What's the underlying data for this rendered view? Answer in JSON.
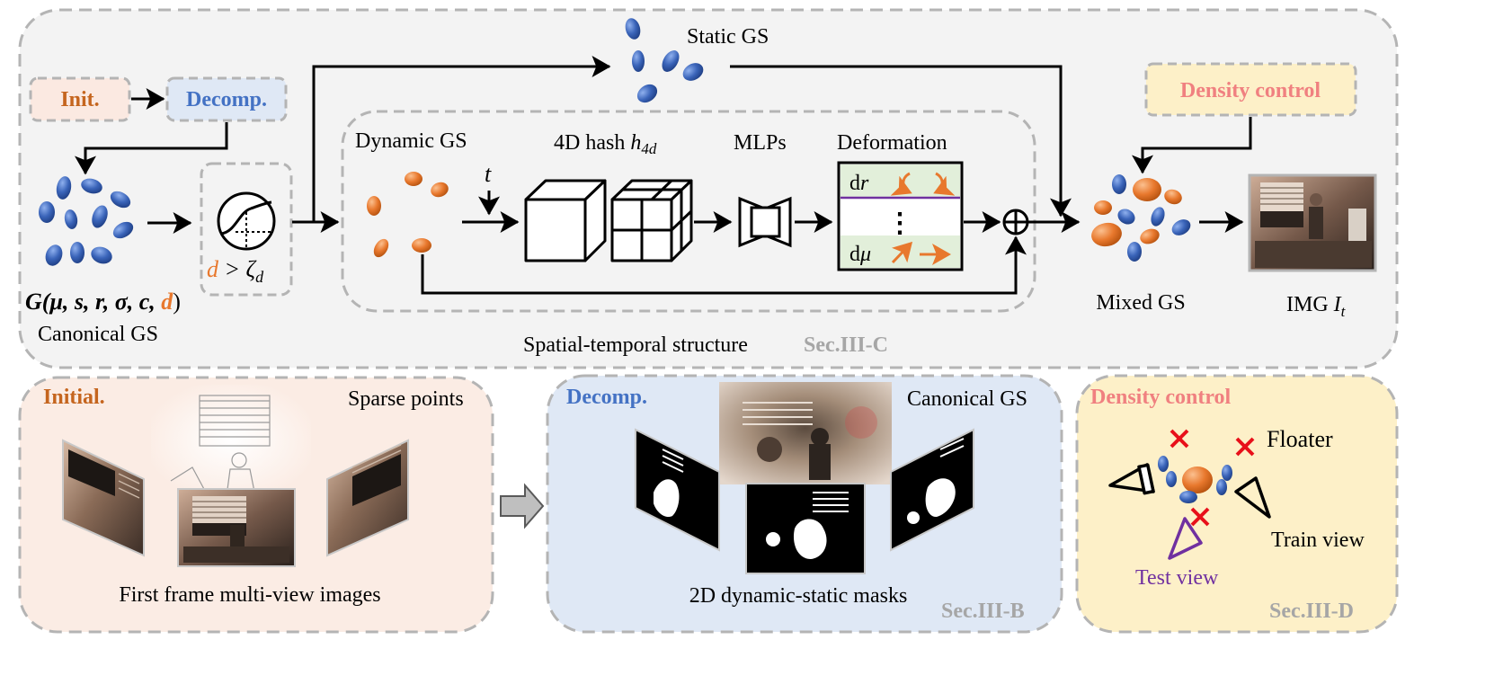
{
  "top": {
    "init_label": "Init.",
    "decomp_label": "Decomp.",
    "density_label": "Density control",
    "static_gs": "Static GS",
    "dynamic_gs": "Dynamic GS",
    "hash_prefix": "4D hash ",
    "hash_symbol": "h",
    "hash_sub": "4d",
    "mlps": "MLPs",
    "deformation": "Deformation",
    "dr_d": "d",
    "dr_var": "r",
    "dmu_d": "d",
    "dmu_var": "μ",
    "vdots": "⋮",
    "t_symbol": "t",
    "threshold_d": "d",
    "threshold_rest": " > ζ",
    "threshold_sub": "d",
    "formula_G": "G(",
    "formula_params": "μ, s, r, σ, c, ",
    "formula_d": "d",
    "formula_close": ")",
    "canonical_gs": "Canonical GS",
    "oplus": "⊕",
    "mixed_gs": "Mixed GS",
    "img_prefix": "IMG ",
    "img_var": "I",
    "img_sub": "t",
    "spatial_temporal": "Spatial-temporal structure",
    "sec_c": "Sec.III-C"
  },
  "panels": {
    "initial": {
      "title": "Initial.",
      "sparse_points": "Sparse points",
      "caption": "First frame multi-view images"
    },
    "decomp": {
      "title": "Decomp.",
      "canonical_gs": "Canonical GS",
      "caption": "2D dynamic-static masks",
      "sec": "Sec.III-B"
    },
    "density": {
      "title": "Density control",
      "floater": "Floater",
      "train_view": "Train view",
      "test_view": "Test view",
      "sec": "Sec.III-D"
    }
  },
  "colors": {
    "blue_gaussian": "#3a64b9",
    "orange_gaussian": "#e8782d",
    "init_text": "#c5651e",
    "decomp_text": "#4472c4",
    "density_text": "#f08080",
    "sec_text": "#a6a6a6",
    "test_view": "#7030a0",
    "cross": "#e8101a"
  }
}
